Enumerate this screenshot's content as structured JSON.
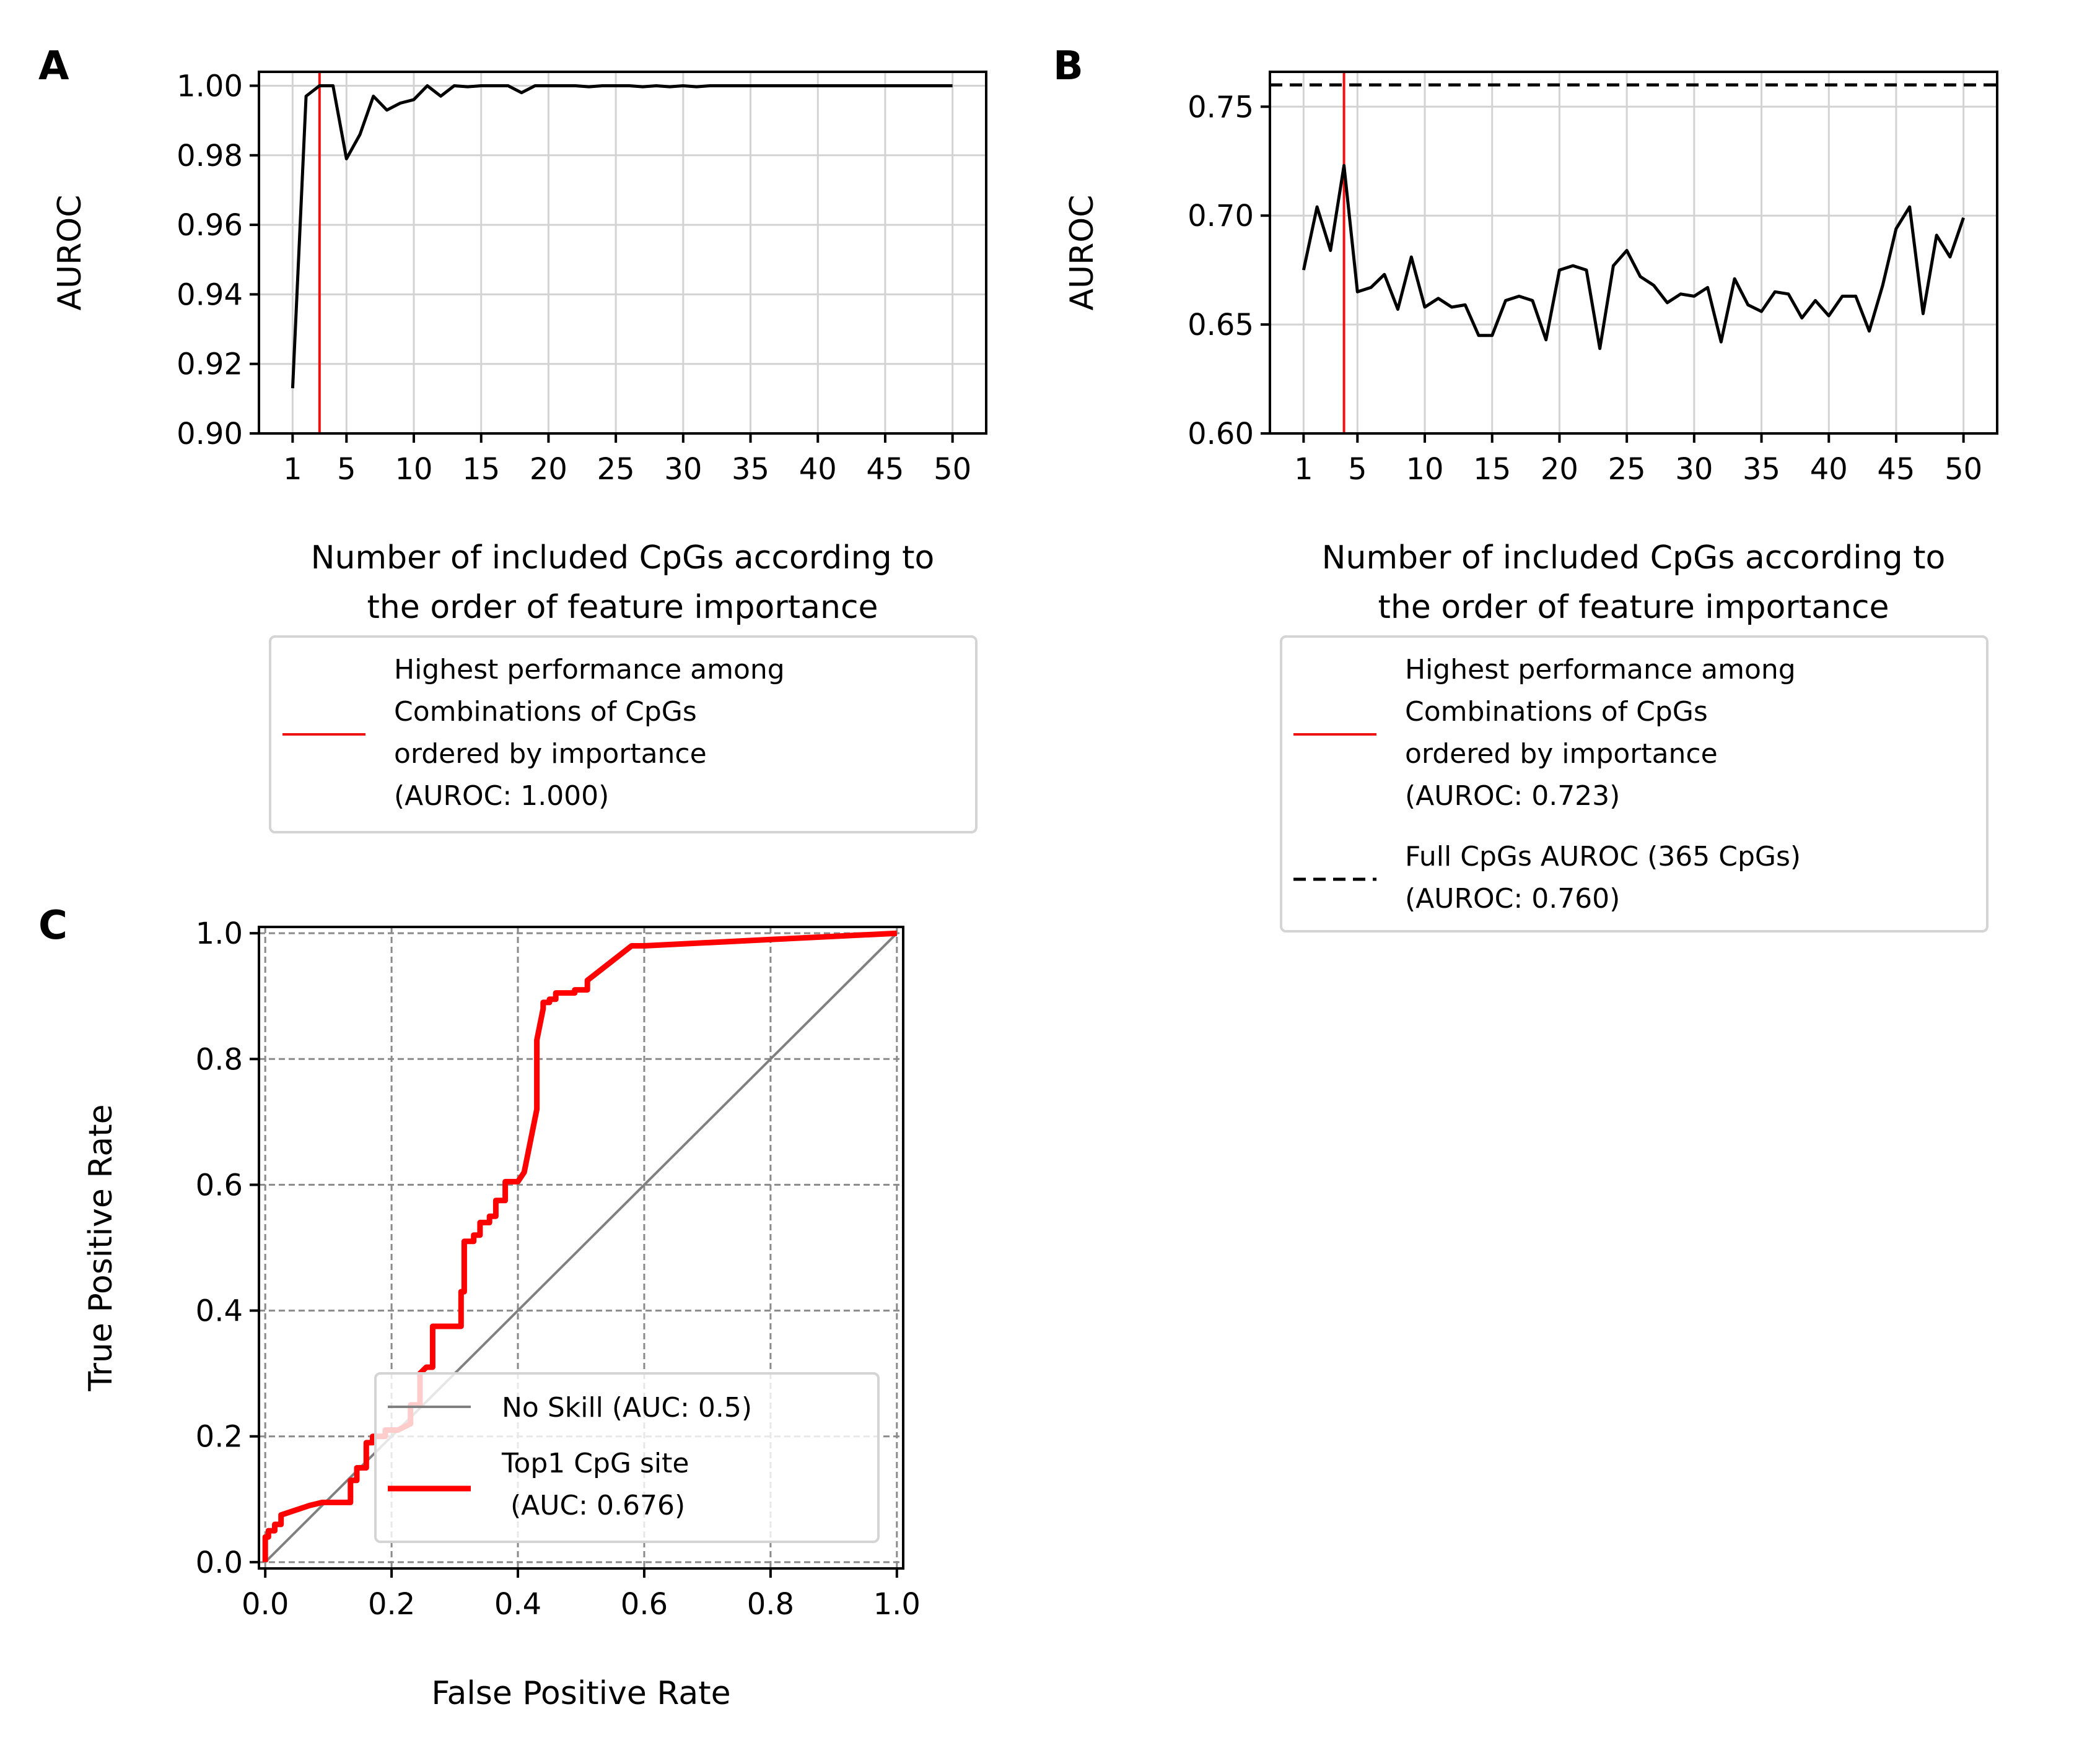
{
  "chart_data": [
    {
      "panel": "A",
      "type": "line",
      "xlabel": [
        "Number of included CpGs according to",
        "the order of feature importance"
      ],
      "ylabel": "AUROC",
      "xlim": [
        -1.5,
        52.5
      ],
      "ylim": [
        0.9,
        1.004
      ],
      "xticks": [
        1,
        5,
        10,
        15,
        20,
        25,
        30,
        35,
        40,
        45,
        50
      ],
      "yticks": [
        0.9,
        0.92,
        0.94,
        0.96,
        0.98,
        1.0
      ],
      "ytick_labels": [
        "0.90",
        "0.92",
        "0.94",
        "0.96",
        "0.98",
        "1.00"
      ],
      "grid": true,
      "legend_placement": "below",
      "series": [
        {
          "name": "",
          "color": "#000000",
          "x": [
            1,
            2,
            3,
            4,
            5,
            6,
            7,
            8,
            9,
            10,
            11,
            12,
            13,
            14,
            15,
            16,
            17,
            18,
            19,
            20,
            21,
            22,
            23,
            24,
            25,
            26,
            27,
            28,
            29,
            30,
            31,
            32,
            33,
            34,
            35,
            36,
            37,
            38,
            39,
            40,
            41,
            42,
            43,
            44,
            45,
            46,
            47,
            48,
            49,
            50
          ],
          "y": [
            0.913,
            0.997,
            1.0,
            1.0,
            0.979,
            0.986,
            0.997,
            0.993,
            0.995,
            0.996,
            1.0,
            0.997,
            1.0,
            0.9997,
            1.0,
            1.0,
            1.0,
            0.998,
            1.0,
            1.0,
            1.0,
            1.0,
            0.9997,
            1.0,
            1.0,
            1.0,
            0.9997,
            1.0,
            0.9997,
            1.0,
            0.9997,
            1.0,
            1.0,
            1.0,
            1.0,
            1.0,
            1.0,
            1.0,
            1.0,
            1.0,
            1.0,
            1.0,
            1.0,
            1.0,
            1.0,
            1.0,
            1.0,
            1.0,
            1.0,
            1.0
          ]
        }
      ],
      "vline": {
        "x": 3,
        "color": "#ee1111"
      },
      "legend": [
        {
          "kind": "solid",
          "color": "#ee1111",
          "lines": [
            "Highest performance among",
            "Combinations of CpGs",
            "ordered by importance",
            "(AUROC: 1.000)"
          ]
        }
      ]
    },
    {
      "panel": "B",
      "type": "line",
      "xlabel": [
        "Number of included CpGs according to",
        "the order of feature importance"
      ],
      "ylabel": "AUROC",
      "xlim": [
        -1.5,
        52.5
      ],
      "ylim": [
        0.6,
        0.766
      ],
      "xticks": [
        1,
        5,
        10,
        15,
        20,
        25,
        30,
        35,
        40,
        45,
        50
      ],
      "yticks": [
        0.6,
        0.65,
        0.7,
        0.75
      ],
      "ytick_labels": [
        "0.60",
        "0.65",
        "0.70",
        "0.75"
      ],
      "grid": true,
      "legend_placement": "below",
      "series": [
        {
          "name": "",
          "color": "#000000",
          "x": [
            1,
            2,
            3,
            4,
            5,
            6,
            7,
            8,
            9,
            10,
            11,
            12,
            13,
            14,
            15,
            16,
            17,
            18,
            19,
            20,
            21,
            22,
            23,
            24,
            25,
            26,
            27,
            28,
            29,
            30,
            31,
            32,
            33,
            34,
            35,
            36,
            37,
            38,
            39,
            40,
            41,
            42,
            43,
            44,
            45,
            46,
            47,
            48,
            49,
            50
          ],
          "y": [
            0.675,
            0.704,
            0.684,
            0.723,
            0.665,
            0.667,
            0.673,
            0.657,
            0.681,
            0.658,
            0.662,
            0.658,
            0.659,
            0.645,
            0.645,
            0.661,
            0.663,
            0.661,
            0.643,
            0.675,
            0.677,
            0.675,
            0.639,
            0.677,
            0.684,
            0.672,
            0.668,
            0.66,
            0.664,
            0.663,
            0.667,
            0.642,
            0.671,
            0.659,
            0.656,
            0.665,
            0.664,
            0.653,
            0.661,
            0.654,
            0.663,
            0.663,
            0.647,
            0.668,
            0.694,
            0.704,
            0.655,
            0.691,
            0.681,
            0.699
          ]
        }
      ],
      "vline": {
        "x": 4,
        "color": "#ee1111"
      },
      "hline": {
        "y": 0.76,
        "color": "#000000",
        "style": "dashed"
      },
      "legend": [
        {
          "kind": "solid",
          "color": "#ee1111",
          "lines": [
            "Highest performance among",
            "Combinations of CpGs",
            "ordered by importance",
            "(AUROC: 0.723)"
          ]
        },
        {
          "kind": "dashed",
          "color": "#000000",
          "lines": [
            "Full CpGs AUROC (365 CpGs)",
            "(AUROC: 0.760)"
          ]
        }
      ]
    },
    {
      "panel": "C",
      "type": "line",
      "xlabel": [
        "False Positive Rate"
      ],
      "ylabel": "True Positive Rate",
      "xlim": [
        -0.01,
        1.01
      ],
      "ylim": [
        -0.01,
        1.01
      ],
      "xticks": [
        0.0,
        0.2,
        0.4,
        0.6,
        0.8,
        1.0
      ],
      "xtick_labels": [
        "0.0",
        "0.2",
        "0.4",
        "0.6",
        "0.8",
        "1.0"
      ],
      "yticks": [
        0.0,
        0.2,
        0.4,
        0.6,
        0.8,
        1.0
      ],
      "ytick_labels": [
        "0.0",
        "0.2",
        "0.4",
        "0.6",
        "0.8",
        "1.0"
      ],
      "grid": true,
      "grid_style": "dashed",
      "legend_placement": "lower-right",
      "series": [
        {
          "name": "No Skill (AUC: 0.5)",
          "color": "#808080",
          "x": [
            0,
            1
          ],
          "y": [
            0,
            1
          ]
        },
        {
          "name": "Top1 CpG site (AUC: 0.676)",
          "color": "#ff0000",
          "x": [
            0,
            0,
            0.005,
            0.005,
            0.015,
            0.015,
            0.025,
            0.025,
            0.07,
            0.09,
            0.11,
            0.135,
            0.135,
            0.145,
            0.145,
            0.16,
            0.16,
            0.17,
            0.17,
            0.19,
            0.19,
            0.21,
            0.23,
            0.23,
            0.245,
            0.245,
            0.255,
            0.265,
            0.265,
            0.31,
            0.31,
            0.315,
            0.315,
            0.33,
            0.33,
            0.34,
            0.34,
            0.355,
            0.355,
            0.365,
            0.365,
            0.38,
            0.38,
            0.4,
            0.41,
            0.43,
            0.43,
            0.44,
            0.44,
            0.45,
            0.45,
            0.46,
            0.46,
            0.49,
            0.49,
            0.51,
            0.51,
            0.58,
            0.6,
            0.8,
            1.0
          ],
          "y": [
            0,
            0.04,
            0.04,
            0.05,
            0.05,
            0.06,
            0.06,
            0.075,
            0.09,
            0.095,
            0.095,
            0.095,
            0.13,
            0.13,
            0.15,
            0.15,
            0.19,
            0.19,
            0.2,
            0.2,
            0.21,
            0.21,
            0.22,
            0.25,
            0.25,
            0.3,
            0.31,
            0.31,
            0.375,
            0.375,
            0.43,
            0.43,
            0.51,
            0.51,
            0.52,
            0.52,
            0.54,
            0.54,
            0.55,
            0.55,
            0.575,
            0.575,
            0.605,
            0.605,
            0.62,
            0.72,
            0.83,
            0.88,
            0.89,
            0.89,
            0.895,
            0.895,
            0.905,
            0.905,
            0.91,
            0.91,
            0.925,
            0.98,
            0.98,
            0.99,
            1.0
          ]
        }
      ],
      "legend": [
        {
          "kind": "solid",
          "color": "#808080",
          "lines": [
            "No Skill (AUC: 0.5)"
          ]
        },
        {
          "kind": "thick",
          "color": "#ff0000",
          "lines": [
            "Top1 CpG site",
            " (AUC: 0.676)"
          ]
        }
      ]
    }
  ]
}
